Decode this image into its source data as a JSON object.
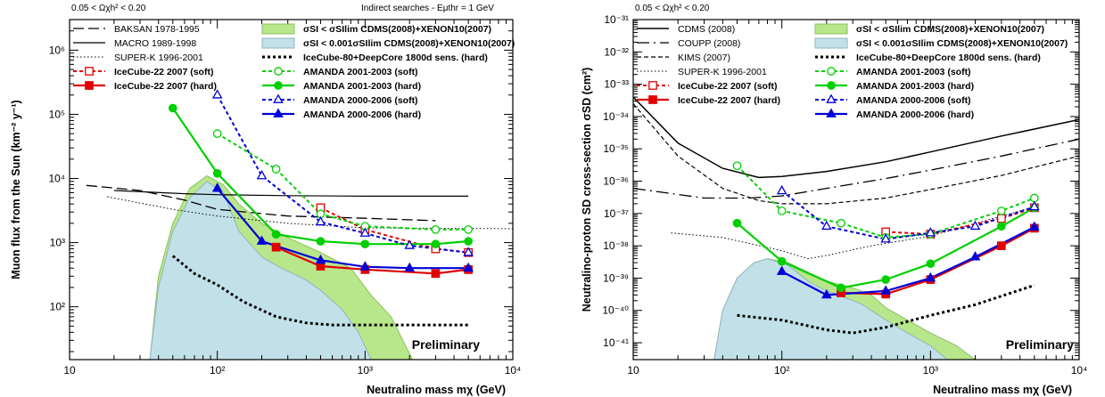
{
  "chart_data": [
    {
      "type": "line",
      "header_left": "0.05 < Ωχh² < 0.20",
      "header_right": "Indirect searches - Eμthr = 1 GeV",
      "xlabel": "Neutralino mass mχ (GeV)",
      "ylabel": "Muon flux from the Sun (km⁻² y⁻¹)",
      "annotation": "Preliminary",
      "x_log": true,
      "y_log": true,
      "xlim": [
        10,
        10000
      ],
      "ylim": [
        15,
        3000000
      ],
      "x_ticks": [
        {
          "v": 10,
          "t": "10"
        },
        {
          "v": 100,
          "t": "10²"
        },
        {
          "v": 1000,
          "t": "10³"
        },
        {
          "v": 10000,
          "t": "10⁴"
        }
      ],
      "y_ticks": [
        {
          "v": 100,
          "t": "10²"
        },
        {
          "v": 1000,
          "t": "10³"
        },
        {
          "v": 10000,
          "t": "10⁴"
        },
        {
          "v": 100000,
          "t": "10⁵"
        },
        {
          "v": 1000000,
          "t": "10⁶"
        }
      ],
      "regions": [
        {
          "name": "σSI < σSIlim CDMS(2008)+XENON10(2007)",
          "color": "#b8e68a",
          "stroke": "#8cc060",
          "points": [
            [
              35,
              15
            ],
            [
              40,
              300
            ],
            [
              50,
              2000
            ],
            [
              65,
              7000
            ],
            [
              85,
              11000
            ],
            [
              110,
              8000
            ],
            [
              140,
              4000
            ],
            [
              200,
              2000
            ],
            [
              300,
              1200
            ],
            [
              500,
              700
            ],
            [
              800,
              400
            ],
            [
              1100,
              150
            ],
            [
              1500,
              70
            ],
            [
              1800,
              30
            ],
            [
              2100,
              15
            ]
          ]
        },
        {
          "name": "σSI < 0.001σSIlim CDMS(2008)+XENON10(2007)",
          "color": "#c2e0e8",
          "stroke": "#90b6c2",
          "points": [
            [
              35,
              15
            ],
            [
              40,
              200
            ],
            [
              50,
              1500
            ],
            [
              65,
              5000
            ],
            [
              85,
              9000
            ],
            [
              110,
              6000
            ],
            [
              140,
              1500
            ],
            [
              200,
              600
            ],
            [
              260,
              420
            ],
            [
              400,
              260
            ],
            [
              500,
              180
            ],
            [
              700,
              90
            ],
            [
              900,
              40
            ],
            [
              1100,
              15
            ]
          ]
        }
      ],
      "series": [
        {
          "name": "BAKSAN 1978-1995",
          "color": "#000",
          "width": 1.3,
          "dash": "12,5",
          "marker": "none",
          "x": [
            13,
            30,
            60,
            100,
            300,
            1000,
            3000
          ],
          "y": [
            7800,
            6500,
            4600,
            3300,
            2600,
            2400,
            2200
          ]
        },
        {
          "name": "MACRO 1989-1998",
          "color": "#000",
          "width": 1.2,
          "dash": "",
          "marker": "none",
          "x": [
            20,
            60,
            100,
            300,
            1000,
            5000
          ],
          "y": [
            6500,
            5800,
            5600,
            5400,
            5300,
            5300
          ]
        },
        {
          "name": "SUPER-K 1996-2001",
          "color": "#000",
          "width": 1,
          "dash": "1.5,2.5",
          "marker": "none",
          "x": [
            18,
            50,
            100,
            300,
            1000,
            10000
          ],
          "y": [
            5200,
            3300,
            2600,
            2000,
            1700,
            1650
          ]
        },
        {
          "name": "IceCube-22 2007 (soft)",
          "color": "#e00000",
          "width": 2,
          "dash": "4,3",
          "marker": "open-square",
          "x": [
            500,
            1000,
            3000,
            5000
          ],
          "y": [
            3500,
            1600,
            800,
            700
          ]
        },
        {
          "name": "IceCube-22 2007 (hard)",
          "color": "#e00000",
          "width": 2.2,
          "dash": "",
          "marker": "filled-square",
          "x": [
            250,
            500,
            1000,
            3000,
            5000
          ],
          "y": [
            850,
            430,
            380,
            330,
            380
          ]
        },
        {
          "name": "AMANDA 2001-2003 (soft)",
          "color": "#00d000",
          "width": 2,
          "dash": "4,3",
          "marker": "open-circle",
          "x": [
            100,
            250,
            500,
            1000,
            3000,
            5000
          ],
          "y": [
            50000,
            14000,
            2800,
            1800,
            1600,
            1600
          ]
        },
        {
          "name": "AMANDA 2001-2003 (hard)",
          "color": "#00d000",
          "width": 2.2,
          "dash": "",
          "marker": "filled-circle",
          "x": [
            50,
            100,
            250,
            500,
            1000,
            3000,
            5000
          ],
          "y": [
            125000,
            12000,
            1350,
            1050,
            950,
            950,
            1050
          ]
        },
        {
          "name": "AMANDA 2000-2006 (soft)",
          "color": "#0000d8",
          "width": 2,
          "dash": "4,3",
          "marker": "open-triangle",
          "x": [
            100,
            200,
            500,
            1000,
            2000,
            5000
          ],
          "y": [
            200000,
            11000,
            2100,
            1400,
            900,
            700
          ]
        },
        {
          "name": "AMANDA 2000-2006 (hard)",
          "color": "#0000d8",
          "width": 2.2,
          "dash": "",
          "marker": "filled-triangle",
          "x": [
            100,
            200,
            500,
            1000,
            2000,
            5000
          ],
          "y": [
            7000,
            1050,
            530,
            420,
            400,
            400
          ]
        },
        {
          "name": "IceCube-80+DeepCore 1800d sens. (hard)",
          "color": "#000",
          "width": 3,
          "dash": "3,3",
          "marker": "none",
          "x": [
            50,
            70,
            100,
            150,
            250,
            400,
            600,
            1000,
            5000
          ],
          "y": [
            620,
            330,
            220,
            120,
            70,
            56,
            52,
            52,
            52
          ]
        }
      ],
      "legend": {
        "col1": [
          "BAKSAN 1978-1995",
          "MACRO 1989-1998",
          "SUPER-K 1996-2001",
          "IceCube-22 2007 (soft)",
          "IceCube-22 2007 (hard)"
        ],
        "col2": [
          "σSI < σSIlim CDMS(2008)+XENON10(2007)",
          "σSI < 0.001σSIlim CDMS(2008)+XENON10(2007)",
          "IceCube-80+DeepCore 1800d sens. (hard)",
          "AMANDA 2001-2003 (soft)",
          "AMANDA 2001-2003 (hard)",
          "AMANDA 2000-2006 (soft)",
          "AMANDA 2000-2006 (hard)"
        ]
      }
    },
    {
      "type": "line",
      "header_left": "0.05 < Ωχh² < 0.20",
      "header_right": "",
      "xlabel": "Neutralino mass mχ (GeV)",
      "ylabel": "Neutralino-proton SD cross-section σSD (cm²)",
      "annotation": "Preliminary",
      "x_log": true,
      "y_log": true,
      "xlim": [
        10,
        10000
      ],
      "ylim": [
        3e-42,
        1e-31
      ],
      "x_ticks": [
        {
          "v": 10,
          "t": "10"
        },
        {
          "v": 100,
          "t": "10²"
        },
        {
          "v": 1000,
          "t": "10³"
        },
        {
          "v": 10000,
          "t": "10⁴"
        }
      ],
      "y_ticks": [
        {
          "v": 1e-41,
          "t": "10⁻⁴¹"
        },
        {
          "v": 1e-40,
          "t": "10⁻⁴⁰"
        },
        {
          "v": 1e-39,
          "t": "10⁻³⁹"
        },
        {
          "v": 1e-38,
          "t": "10⁻³⁸"
        },
        {
          "v": 1e-37,
          "t": "10⁻³⁷"
        },
        {
          "v": 1e-36,
          "t": "10⁻³⁶"
        },
        {
          "v": 1e-35,
          "t": "10⁻³⁵"
        },
        {
          "v": 1e-34,
          "t": "10⁻³⁴"
        },
        {
          "v": 1e-33,
          "t": "10⁻³³"
        },
        {
          "v": 1e-32,
          "t": "10⁻³²"
        },
        {
          "v": 1e-31,
          "t": "10⁻³¹"
        }
      ],
      "regions": [
        {
          "name": "σSI < σSIlim CDMS(2008)+XENON10(2007)",
          "color": "#b8e68a",
          "stroke": "#8cc060",
          "points": [
            [
              35,
              3e-42
            ],
            [
              40,
              1e-40
            ],
            [
              50,
              1e-39
            ],
            [
              65,
              3e-39
            ],
            [
              80,
              4e-39
            ],
            [
              110,
              3e-39
            ],
            [
              150,
              1.5e-39
            ],
            [
              200,
              8e-40
            ],
            [
              300,
              5e-40
            ],
            [
              400,
              3e-40
            ],
            [
              500,
              1.2e-40
            ],
            [
              700,
              5e-41
            ],
            [
              1000,
              2e-41
            ],
            [
              1500,
              8e-42
            ],
            [
              2000,
              3e-42
            ]
          ]
        },
        {
          "name": "σSI < 0.001σSIlim CDMS(2008)+XENON10(2007)",
          "color": "#c2e0e8",
          "stroke": "#90b6c2",
          "points": [
            [
              35,
              3e-42
            ],
            [
              40,
              1e-40
            ],
            [
              50,
              1e-39
            ],
            [
              65,
              3e-39
            ],
            [
              80,
              4e-39
            ],
            [
              110,
              2.5e-39
            ],
            [
              150,
              8e-40
            ],
            [
              200,
              4e-40
            ],
            [
              250,
              2.8e-40
            ],
            [
              350,
              1.5e-40
            ],
            [
              500,
              5e-41
            ],
            [
              700,
              2e-41
            ],
            [
              1000,
              8e-42
            ],
            [
              1300,
              3e-42
            ]
          ]
        }
      ],
      "series": [
        {
          "name": "CDMS (2008)",
          "color": "#000",
          "width": 1.5,
          "dash": "",
          "marker": "none",
          "x": [
            10,
            20,
            40,
            70,
            100,
            200,
            500,
            1000,
            3000,
            10000
          ],
          "y": [
            4e-34,
            1.5e-35,
            2.5e-36,
            1.3e-36,
            1.4e-36,
            2e-36,
            4e-36,
            8e-36,
            2.5e-35,
            8e-35
          ]
        },
        {
          "name": "COUPP (2008)",
          "color": "#000",
          "width": 1.3,
          "dash": "14,5,2,5",
          "marker": "none",
          "x": [
            10,
            30,
            60,
            100,
            200,
            500,
            1000,
            3000,
            10000
          ],
          "y": [
            6e-37,
            3e-37,
            3e-37,
            3.5e-37,
            6e-37,
            1.2e-36,
            2.2e-36,
            6e-36,
            2e-35
          ]
        },
        {
          "name": "KIMS (2007)",
          "color": "#000",
          "width": 1.2,
          "dash": "5,3",
          "marker": "none",
          "x": [
            10,
            20,
            40,
            70,
            100,
            200,
            500,
            1000,
            3000,
            10000
          ],
          "y": [
            2.5e-34,
            6e-36,
            6e-37,
            2.5e-37,
            2e-37,
            2e-37,
            3e-37,
            5.5e-37,
            1.5e-36,
            6e-36
          ]
        },
        {
          "name": "SUPER-K 1996-2001",
          "color": "#000",
          "width": 1,
          "dash": "1.5,2.5",
          "marker": "none",
          "x": [
            18,
            40,
            100,
            150,
            200,
            400,
            1000,
            5000
          ],
          "y": [
            2.5e-38,
            1.8e-38,
            7e-39,
            4e-39,
            5e-39,
            1e-38,
            2e-38,
            1.6e-37
          ]
        },
        {
          "name": "IceCube-22 2007 (soft)",
          "color": "#e00000",
          "width": 2,
          "dash": "4,3",
          "marker": "open-square",
          "x": [
            500,
            1000,
            3000,
            5000
          ],
          "y": [
            2.7e-38,
            2.3e-38,
            7e-38,
            1.5e-37
          ]
        },
        {
          "name": "IceCube-22 2007 (hard)",
          "color": "#e00000",
          "width": 2.2,
          "dash": "",
          "marker": "filled-square",
          "x": [
            250,
            500,
            1000,
            3000,
            5000
          ],
          "y": [
            3.5e-40,
            3.2e-40,
            9e-40,
            1e-38,
            3.5e-38
          ]
        },
        {
          "name": "AMANDA 2001-2003 (soft)",
          "color": "#00d000",
          "width": 2,
          "dash": "4,3",
          "marker": "open-circle",
          "x": [
            50,
            100,
            250,
            500,
            1000,
            3000,
            5000
          ],
          "y": [
            3e-36,
            1.2e-37,
            5e-38,
            1.8e-38,
            2.3e-38,
            1.2e-37,
            3e-37
          ]
        },
        {
          "name": "AMANDA 2001-2003 (hard)",
          "color": "#00d000",
          "width": 2.2,
          "dash": "",
          "marker": "filled-circle",
          "x": [
            50,
            100,
            250,
            500,
            1000,
            3000,
            5000
          ],
          "y": [
            5e-38,
            3.3e-39,
            5e-40,
            9e-40,
            2.8e-39,
            4e-38,
            1.5e-37
          ]
        },
        {
          "name": "AMANDA 2000-2006 (soft)",
          "color": "#0000d8",
          "width": 2,
          "dash": "4,3",
          "marker": "open-triangle",
          "x": [
            100,
            200,
            500,
            1000,
            2000,
            5000
          ],
          "y": [
            5e-37,
            4e-38,
            1.6e-38,
            2.5e-38,
            4e-38,
            1.6e-37
          ]
        },
        {
          "name": "AMANDA 2000-2006 (hard)",
          "color": "#0000d8",
          "width": 2.2,
          "dash": "",
          "marker": "filled-triangle",
          "x": [
            100,
            200,
            500,
            1000,
            2000,
            5000
          ],
          "y": [
            1.6e-39,
            3e-40,
            4e-40,
            1e-39,
            4.5e-39,
            3.8e-38
          ]
        },
        {
          "name": "IceCube-80+DeepCore 1800d sens. (hard)",
          "color": "#000",
          "width": 3,
          "dash": "3,3",
          "marker": "none",
          "x": [
            50,
            100,
            200,
            300,
            500,
            1000,
            2000,
            5000
          ],
          "y": [
            7e-41,
            5e-41,
            2.5e-41,
            2e-41,
            3e-41,
            7e-41,
            1.5e-40,
            6e-40
          ]
        }
      ],
      "legend": {
        "col1": [
          "CDMS (2008)",
          "COUPP (2008)",
          "KIMS (2007)",
          "SUPER-K 1996-2001",
          "IceCube-22 2007 (soft)",
          "IceCube-22 2007 (hard)"
        ],
        "col2": [
          "σSI < σSIlim CDMS(2008)+XENON10(2007)",
          "σSI < 0.001σSIlim CDMS(2008)+XENON10(2007)",
          "IceCube-80+DeepCore 1800d sens. (hard)",
          "AMANDA 2001-2003 (soft)",
          "AMANDA 2001-2003 (hard)",
          "AMANDA 2000-2006 (soft)",
          "AMANDA 2000-2006 (hard)"
        ]
      }
    }
  ]
}
